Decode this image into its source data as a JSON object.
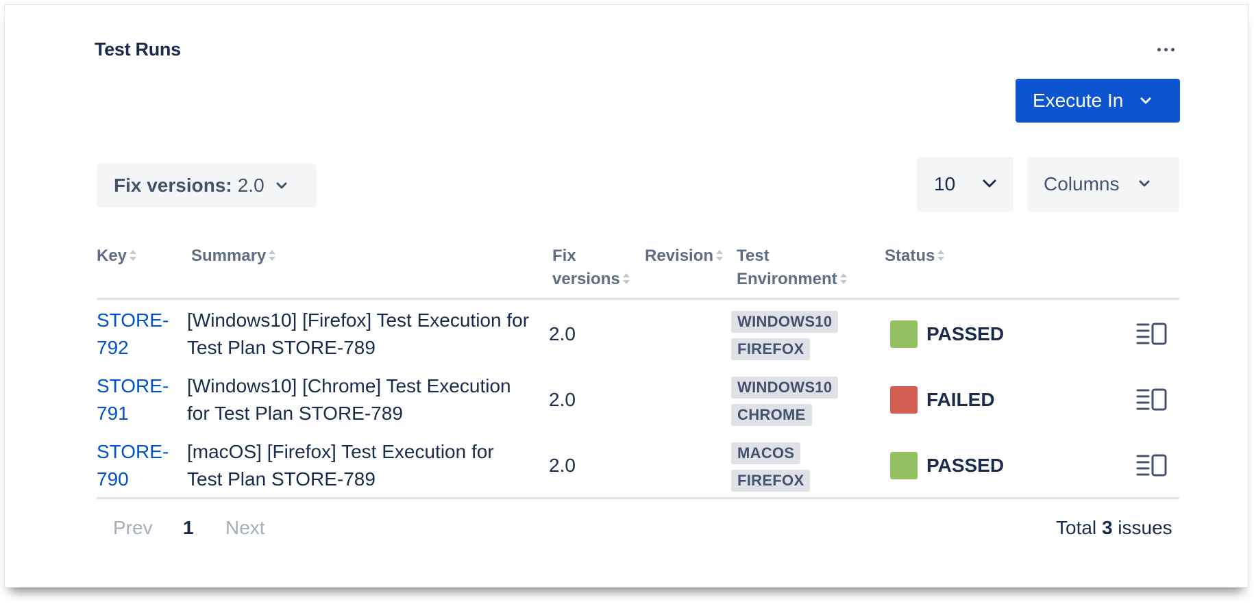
{
  "panel": {
    "title": "Test Runs",
    "more_icon": "ellipsis-horizontal-icon"
  },
  "toolbar": {
    "execute_label": "Execute In",
    "filter_label": "Fix versions:",
    "filter_value": "2.0",
    "page_size": "10",
    "columns_label": "Columns"
  },
  "table": {
    "headers": {
      "key": "Key",
      "summary": "Summary",
      "fix_versions_1": "Fix",
      "fix_versions_2": "versions",
      "revision": "Revision",
      "test_env_1": "Test",
      "test_env_2": "Environment",
      "status": "Status"
    },
    "rows": [
      {
        "key_1": "STORE-",
        "key_2": "792",
        "summary_1": "[Windows10] [Firefox] Test Execution for",
        "summary_2": "Test Plan STORE-789",
        "fix_version": "2.0",
        "revision": "",
        "env": [
          "WINDOWS10",
          "FIREFOX"
        ],
        "status": "PASSED",
        "status_color": "#94c162"
      },
      {
        "key_1": "STORE-",
        "key_2": "791",
        "summary_1": "[Windows10] [Chrome] Test Execution",
        "summary_2": "for Test Plan STORE-789",
        "fix_version": "2.0",
        "revision": "",
        "env": [
          "WINDOWS10",
          "CHROME"
        ],
        "status": "FAILED",
        "status_color": "#d45d52"
      },
      {
        "key_1": "STORE-",
        "key_2": "790",
        "summary_1": "[macOS] [Firefox] Test Execution for",
        "summary_2": "Test Plan STORE-789",
        "fix_version": "2.0",
        "revision": "",
        "env": [
          "MACOS",
          "FIREFOX"
        ],
        "status": "PASSED",
        "status_color": "#94c162"
      }
    ]
  },
  "pagination": {
    "prev": "Prev",
    "current": "1",
    "next": "Next",
    "total_prefix": "Total",
    "total_count": "3",
    "total_suffix": "issues"
  },
  "colors": {
    "primary": "#0c55cf",
    "link": "#0052cc",
    "passed": "#94c162",
    "failed": "#d45d52"
  }
}
